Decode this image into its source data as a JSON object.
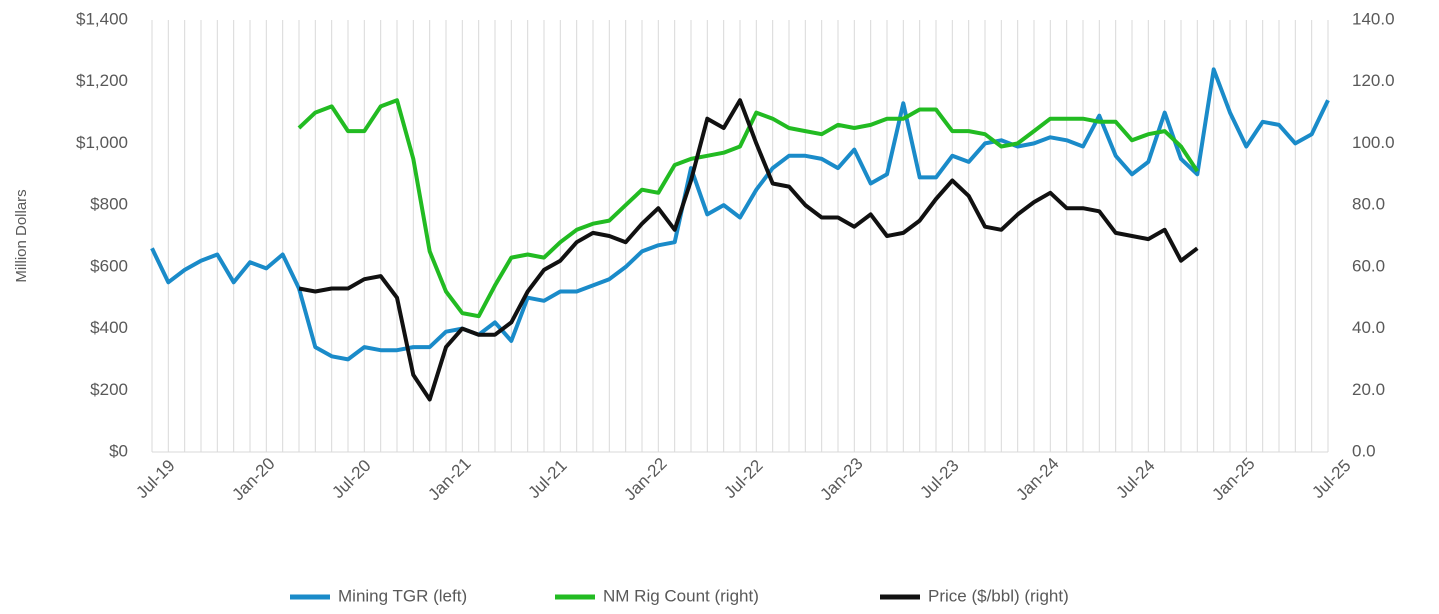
{
  "chart_data": {
    "type": "line",
    "y_label": "Million Dollars",
    "categories": [
      "Jul-19",
      null,
      null,
      null,
      null,
      null,
      "Jan-20",
      null,
      null,
      null,
      null,
      null,
      "Jul-20",
      null,
      null,
      null,
      null,
      null,
      "Jan-21",
      null,
      null,
      null,
      null,
      null,
      "Jul-21",
      null,
      null,
      null,
      null,
      null,
      "Jan-22",
      null,
      null,
      null,
      null,
      null,
      "Jul-22",
      null,
      null,
      null,
      null,
      null,
      "Jan-23",
      null,
      null,
      null,
      null,
      null,
      "Jul-23",
      null,
      null,
      null,
      null,
      null,
      "Jan-24",
      null,
      null,
      null,
      null,
      null,
      "Jul-24",
      null,
      null,
      null,
      null,
      null,
      "Jan-25",
      null,
      null,
      null,
      null,
      null,
      "Jul-25"
    ],
    "series": [
      {
        "name": "Mining TGR (left)",
        "color": "#1a8bc9",
        "axis": "y",
        "values": [
          660,
          550,
          590,
          620,
          640,
          550,
          615,
          595,
          640,
          530,
          340,
          310,
          300,
          340,
          330,
          330,
          340,
          340,
          390,
          400,
          380,
          420,
          360,
          500,
          490,
          520,
          520,
          540,
          560,
          600,
          650,
          670,
          680,
          920,
          770,
          800,
          760,
          850,
          920,
          960,
          960,
          950,
          920,
          980,
          870,
          900,
          1130,
          890,
          890,
          960,
          940,
          1000,
          1010,
          990,
          1000,
          1020,
          1010,
          990,
          1090,
          960,
          900,
          940,
          1100,
          950,
          900,
          1240,
          1100,
          990,
          1070,
          1060,
          1000,
          1030,
          1140
        ]
      },
      {
        "name": "NM Rig Count (right)",
        "color": "#22bb22",
        "axis": "y2",
        "values": [
          null,
          null,
          null,
          null,
          null,
          null,
          null,
          null,
          null,
          105,
          110,
          112,
          104,
          104,
          112,
          114,
          95,
          65,
          52,
          45,
          44,
          54,
          63,
          64,
          63,
          68,
          72,
          74,
          75,
          80,
          85,
          84,
          93,
          95,
          96,
          97,
          99,
          110,
          108,
          105,
          104,
          103,
          106,
          105,
          106,
          108,
          108,
          111,
          111,
          104,
          104,
          103,
          99,
          100,
          104,
          108,
          108,
          108,
          107,
          107,
          101,
          103,
          104,
          99,
          91,
          null,
          null,
          null,
          null,
          null,
          null,
          null,
          null
        ]
      },
      {
        "name": "Price ($/bbl) (right)",
        "color": "#111111",
        "axis": "y2",
        "values": [
          null,
          null,
          null,
          null,
          null,
          null,
          null,
          null,
          null,
          53,
          52,
          53,
          53,
          56,
          57,
          50,
          25,
          17,
          34,
          40,
          38,
          38,
          42,
          52,
          59,
          62,
          68,
          71,
          70,
          68,
          74,
          79,
          72,
          88,
          108,
          105,
          114,
          100,
          87,
          86,
          80,
          76,
          76,
          73,
          77,
          70,
          71,
          75,
          82,
          88,
          83,
          73,
          72,
          77,
          81,
          84,
          79,
          79,
          78,
          71,
          70,
          69,
          72,
          62,
          66,
          null,
          null,
          null,
          null,
          null,
          null,
          null,
          null
        ]
      }
    ],
    "ylim": [
      0,
      1400
    ],
    "yticks": [
      {
        "value": 0,
        "label": "$0"
      },
      {
        "value": 200,
        "label": "$200"
      },
      {
        "value": 400,
        "label": "$400"
      },
      {
        "value": 600,
        "label": "$600"
      },
      {
        "value": 800,
        "label": "$800"
      },
      {
        "value": 1000,
        "label": "$1,000"
      },
      {
        "value": 1200,
        "label": "$1,200"
      },
      {
        "value": 1400,
        "label": "$1,400"
      }
    ],
    "y2lim": [
      0,
      140
    ],
    "y2ticks": [
      {
        "value": 0,
        "label": "0.0"
      },
      {
        "value": 20,
        "label": "20.0"
      },
      {
        "value": 40,
        "label": "40.0"
      },
      {
        "value": 60,
        "label": "60.0"
      },
      {
        "value": 80,
        "label": "80.0"
      },
      {
        "value": 100,
        "label": "100.0"
      },
      {
        "value": 120,
        "label": "120.0"
      },
      {
        "value": 140,
        "label": "140.0"
      }
    ],
    "grid": "x",
    "legend": "bottom"
  }
}
